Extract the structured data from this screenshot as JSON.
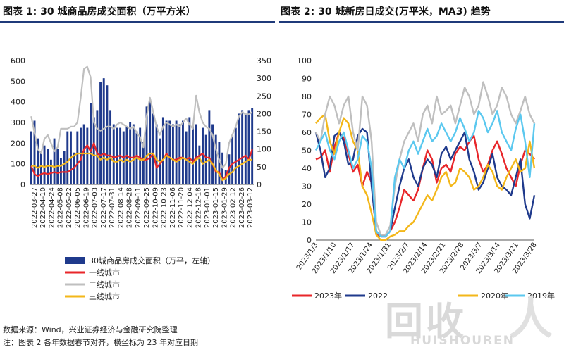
{
  "titles": {
    "left": "图表 1: 30 城商品房成交面积（万平方米）",
    "right": "图表 2:    30 城新房日成交(万平米，MA3) 趋势"
  },
  "notes": {
    "source": "数据来源：Wind，兴业证券经济与金融研究院整理",
    "remark": "注：图表 2 各年数据春节对齐，横坐标为 23 年对应日期"
  },
  "watermark": {
    "logo": "回收",
    "extra": "人",
    "sub": "HUISHOUREN"
  },
  "chart_data": [
    {
      "type": "bar",
      "title": "",
      "x_ticks": [
        "2022-03-27",
        "2022-04-10",
        "2022-04-24",
        "2022-05-08",
        "2022-05-22",
        "2022-06-05",
        "2022-06-19",
        "2022-07-03",
        "2022-07-17",
        "2022-07-31",
        "2022-08-14",
        "2022-08-28",
        "2022-09-11",
        "2022-09-25",
        "2022-10-09",
        "2022-10-23",
        "2022-11-06",
        "2022-11-20",
        "2022-12-04",
        "2022-12-18",
        "2023-01-01",
        "2023-01-15",
        "2023-01-29",
        "2023-02-12",
        "2023-02-26",
        "2023-03-12"
      ],
      "ylim_left": [
        0,
        600
      ],
      "yticks_left": [
        0,
        100,
        200,
        300,
        400,
        500,
        600
      ],
      "ylim_right": [
        0,
        350
      ],
      "yticks_right": [
        0,
        50,
        100,
        150,
        200,
        250,
        300,
        350
      ],
      "series": [
        {
          "name": "30城商品房成交面积（万平，左轴）",
          "type": "bar",
          "axis": "right",
          "color": "#1f3a8c",
          "values": [
            150,
            180,
            130,
            95,
            110,
            100,
            70,
            130,
            100,
            75,
            95,
            150,
            150,
            90,
            150,
            160,
            170,
            160,
            230,
            190,
            210,
            290,
            300,
            280,
            210,
            170,
            160,
            160,
            150,
            165,
            175,
            170,
            150,
            160,
            120,
            220,
            240,
            200,
            170,
            130,
            190,
            180,
            180,
            170,
            180,
            170,
            180,
            150,
            190,
            170,
            170,
            110,
            160,
            140,
            210,
            170,
            140,
            120,
            90,
            40,
            85,
            140,
            160,
            200,
            210,
            200,
            210,
            215
          ]
        },
        {
          "name": "一线城市",
          "type": "line",
          "axis": "left",
          "color": "#e8262a",
          "values": [
            90,
            50,
            40,
            50,
            55,
            50,
            55,
            60,
            55,
            60,
            60,
            60,
            70,
            80,
            100,
            120,
            170,
            190,
            160,
            200,
            150,
            140,
            150,
            140,
            140,
            130,
            135,
            140,
            130,
            140,
            130,
            130,
            140,
            130,
            120,
            120,
            130,
            150,
            80,
            100,
            120,
            150,
            130,
            120,
            120,
            130,
            130,
            120,
            130,
            110,
            130,
            140,
            150,
            130,
            130,
            100,
            60,
            60,
            20,
            40,
            80,
            100,
            110,
            120,
            130,
            140,
            120,
            170
          ]
        },
        {
          "name": "二线城市",
          "type": "line",
          "axis": "left",
          "color": "#bfbfbf",
          "values": [
            330,
            250,
            170,
            150,
            220,
            240,
            200,
            160,
            180,
            270,
            270,
            270,
            280,
            280,
            300,
            420,
            560,
            570,
            520,
            300,
            270,
            260,
            270,
            280,
            280,
            270,
            290,
            300,
            290,
            280,
            270,
            280,
            250,
            230,
            180,
            330,
            420,
            350,
            280,
            240,
            280,
            300,
            290,
            280,
            290,
            280,
            300,
            320,
            290,
            270,
            430,
            350,
            300,
            280,
            270,
            240,
            170,
            120,
            80,
            100,
            200,
            240,
            280,
            330,
            350,
            340,
            340,
            350
          ]
        },
        {
          "name": "三线城市",
          "type": "line",
          "axis": "left",
          "color": "#f3b71a",
          "values": [
            90,
            90,
            80,
            90,
            85,
            90,
            90,
            85,
            90,
            90,
            100,
            110,
            130,
            140,
            150,
            150,
            150,
            150,
            150,
            140,
            140,
            120,
            130,
            120,
            130,
            110,
            110,
            120,
            110,
            120,
            110,
            120,
            130,
            120,
            120,
            140,
            150,
            150,
            120,
            110,
            120,
            140,
            130,
            120,
            110,
            120,
            130,
            120,
            110,
            100,
            120,
            130,
            100,
            110,
            120,
            100,
            70,
            50,
            20,
            30,
            50,
            60,
            80,
            90,
            100,
            110,
            120,
            120
          ]
        }
      ]
    },
    {
      "type": "line",
      "title": "",
      "x_ticks": [
        "2023/1/3",
        "2023/1/10",
        "2023/1/17",
        "2023/1/24",
        "2023/1/31",
        "2023/2/7",
        "2023/2/14",
        "2023/2/21",
        "2023/2/28",
        "2023/3/7",
        "2023/3/14",
        "2023/3/21",
        "2023/3/28"
      ],
      "ylim": [
        0,
        100
      ],
      "yticks": [
        0,
        10,
        20,
        30,
        40,
        50,
        60,
        70,
        80,
        90,
        100
      ],
      "series": [
        {
          "name": "2023年",
          "color": "#e8262a",
          "values": [
            45,
            46,
            50,
            38,
            52,
            60,
            57,
            48,
            38,
            42,
            30,
            38,
            32,
            3,
            2,
            2,
            5,
            10,
            18,
            28,
            25,
            22,
            28,
            40,
            50,
            45,
            32,
            40,
            42,
            38,
            48,
            52,
            50,
            55,
            58,
            45,
            38,
            42,
            50,
            55,
            48,
            40,
            35,
            30,
            42,
            50,
            48,
            45
          ]
        },
        {
          "name": "2022",
          "color": "#1f3a8c",
          "values": [
            60,
            50,
            35,
            40,
            58,
            60,
            55,
            42,
            45,
            58,
            62,
            60,
            30,
            5,
            2,
            2,
            5,
            18,
            30,
            40,
            45,
            35,
            30,
            40,
            45,
            42,
            35,
            48,
            52,
            45,
            50,
            55,
            60,
            45,
            38,
            28,
            32,
            40,
            48,
            35,
            30,
            28,
            25,
            35,
            45,
            20,
            12,
            25
          ]
        },
        {
          "name": "2020年",
          "color": "#f3b71a",
          "values": [
            65,
            68,
            70,
            55,
            48,
            60,
            68,
            65,
            55,
            50,
            30,
            25,
            15,
            3,
            0,
            0,
            2,
            3,
            5,
            5,
            8,
            10,
            15,
            20,
            25,
            22,
            28,
            35,
            38,
            30,
            32,
            40,
            38,
            35,
            28,
            30,
            35,
            42,
            38,
            30,
            28,
            35,
            40,
            45,
            38,
            40,
            55,
            40
          ]
        },
        {
          "name": "",
          "color": "#bfbfbf",
          "values": [
            60,
            55,
            70,
            80,
            75,
            65,
            75,
            80,
            60,
            50,
            80,
            75,
            55,
            10,
            3,
            3,
            8,
            30,
            45,
            55,
            60,
            65,
            55,
            70,
            75,
            65,
            80,
            70,
            72,
            75,
            65,
            75,
            85,
            80,
            70,
            75,
            88,
            80,
            70,
            75,
            85,
            80,
            70,
            65,
            72,
            80,
            70,
            65
          ]
        },
        {
          "name": "2019年",
          "color": "#5bc8ef",
          "values": [
            50,
            55,
            60,
            50,
            45,
            55,
            60,
            50,
            40,
            45,
            58,
            55,
            40,
            5,
            2,
            2,
            5,
            35,
            45,
            40,
            50,
            55,
            48,
            55,
            62,
            55,
            58,
            65,
            60,
            55,
            60,
            68,
            62,
            55,
            60,
            72,
            68,
            60,
            65,
            72,
            60,
            55,
            50,
            62,
            70,
            55,
            35,
            65
          ]
        }
      ]
    }
  ]
}
